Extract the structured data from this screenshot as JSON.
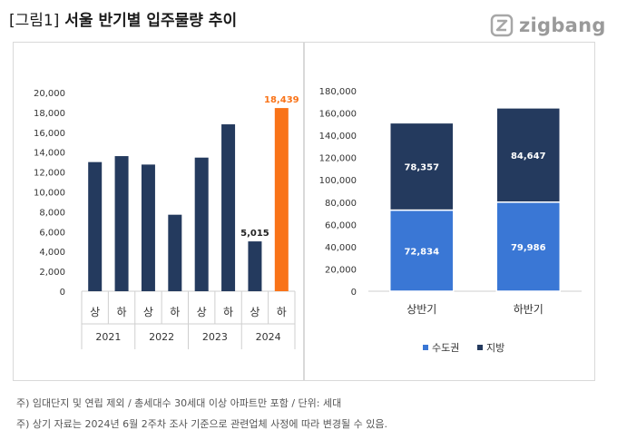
{
  "header": {
    "figure_label": "[그림1]",
    "title": "서울 반기별 입주물량 추이",
    "logo_text": "zigbang"
  },
  "chart_data": [
    {
      "type": "bar",
      "categories": [
        "상",
        "하",
        "상",
        "하",
        "상",
        "하",
        "상",
        "하"
      ],
      "year_groups": [
        "2021",
        "2022",
        "2023",
        "2024"
      ],
      "values": [
        13000,
        13600,
        12750,
        7700,
        13450,
        16800,
        5015,
        18439
      ],
      "data_labels": [
        null,
        null,
        null,
        null,
        null,
        null,
        "5,015",
        "18,439"
      ],
      "ylim": [
        0,
        20000
      ],
      "yticks": [
        "0",
        "2,000",
        "4,000",
        "6,000",
        "8,000",
        "10,000",
        "12,000",
        "14,000",
        "16,000",
        "18,000",
        "20,000"
      ],
      "bar_color": "#243a5e",
      "highlight_color": "#f97318",
      "highlight_index": 7,
      "grid": false
    },
    {
      "type": "bar",
      "stacked": true,
      "categories": [
        "상반기",
        "하반기"
      ],
      "series": [
        {
          "name": "수도권",
          "values": [
            72834,
            79986
          ],
          "labels": [
            "72,834",
            "79,986"
          ],
          "color": "#3a77d5"
        },
        {
          "name": "지방",
          "values": [
            78357,
            84647
          ],
          "labels": [
            "78,357",
            "84,647"
          ],
          "color": "#243a5e"
        }
      ],
      "ylim": [
        0,
        180000
      ],
      "yticks": [
        "0",
        "20,000",
        "40,000",
        "60,000",
        "80,000",
        "100,000",
        "120,000",
        "140,000",
        "160,000",
        "180,000"
      ],
      "legend_position": "bottom",
      "grid": false
    }
  ],
  "notes": [
    "주) 임대단지 및 연립 제외 / 총세대수 30세대 이상 아파트만 포함 / 단위: 세대",
    "주) 상기 자료는 2024년 6월 2주차 조사 기준으로 관련업체 사정에 따라 변경될 수 있음."
  ]
}
